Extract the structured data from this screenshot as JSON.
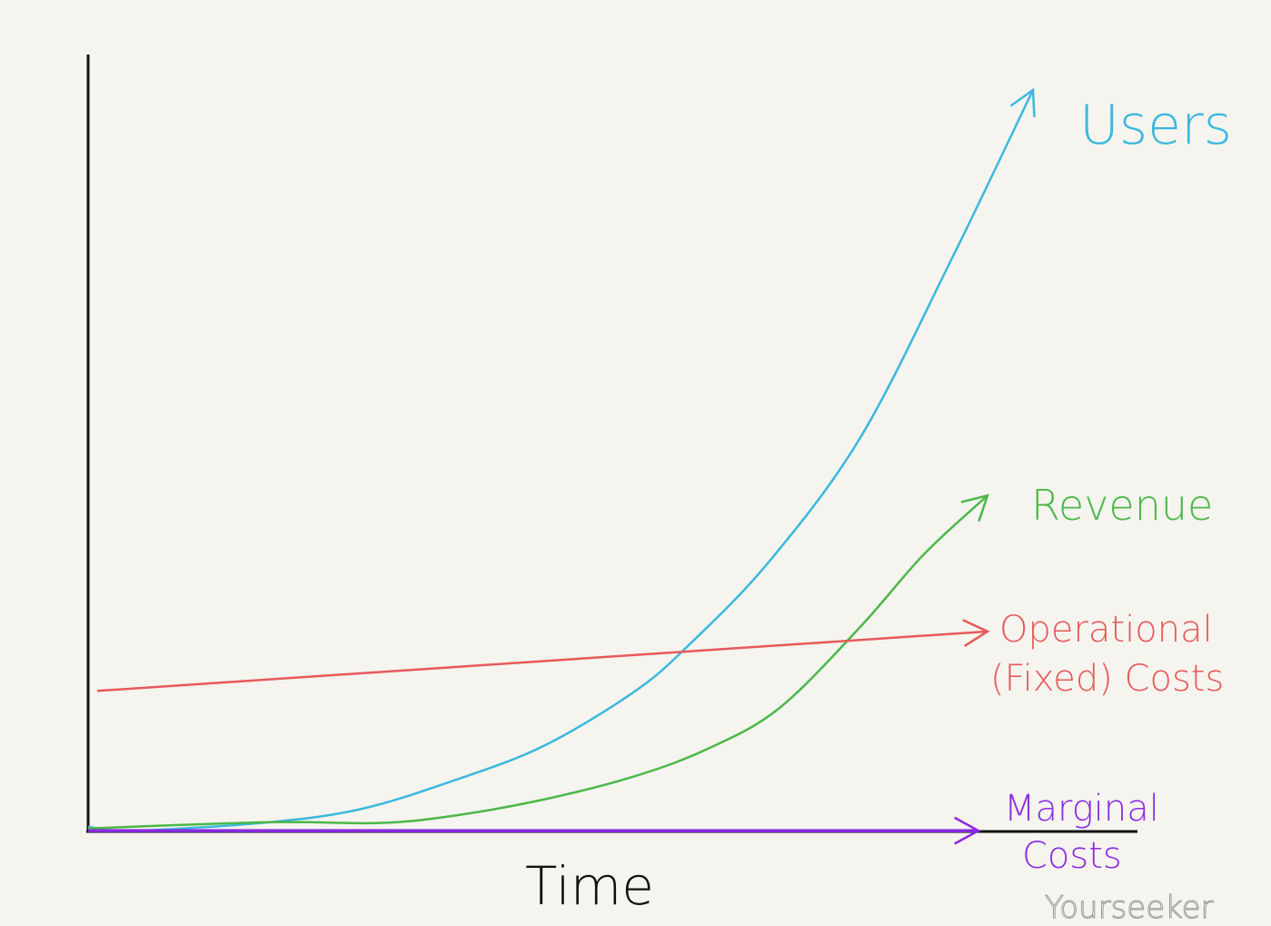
{
  "chart_data": {
    "type": "line",
    "title": "",
    "xlabel": "Time",
    "ylabel": "",
    "xlim": [
      0,
      11.5
    ],
    "ylim": [
      0,
      10
    ],
    "grid": false,
    "legend": "inline labels at line ends",
    "series": [
      {
        "name": "Users",
        "color": "#3bb8de",
        "x": [
          0,
          0.5,
          2,
          3,
          4,
          5,
          6,
          6.6,
          7.5,
          8.5,
          9.5,
          10.4
        ],
        "y": [
          0.06,
          0.01,
          0.12,
          0.29,
          0.65,
          1.1,
          1.8,
          2.4,
          3.5,
          5.1,
          7.4,
          9.6
        ]
      },
      {
        "name": "Revenue",
        "color": "#4cb848",
        "x": [
          0,
          2,
          3.2,
          4,
          5,
          6,
          6.8,
          7.6,
          8.5,
          9.2,
          9.9
        ],
        "y": [
          0.04,
          0.12,
          0.11,
          0.2,
          0.41,
          0.71,
          1.06,
          1.59,
          2.65,
          3.59,
          4.35
        ]
      },
      {
        "name": "Operational (Fixed) Costs",
        "line1": "Operational",
        "line2": "(Fixed) Costs",
        "color": "#e8595a",
        "x": [
          0.1,
          9.9
        ],
        "y": [
          1.82,
          2.59
        ]
      },
      {
        "name": "Marginal Costs",
        "line1": "Marginal",
        "line2": "Costs",
        "color": "#8a2be2",
        "x": [
          0,
          9.8
        ],
        "y": [
          0.01,
          0.01
        ]
      }
    ],
    "axis_color": "#111111"
  },
  "watermark": "Yourseeker"
}
